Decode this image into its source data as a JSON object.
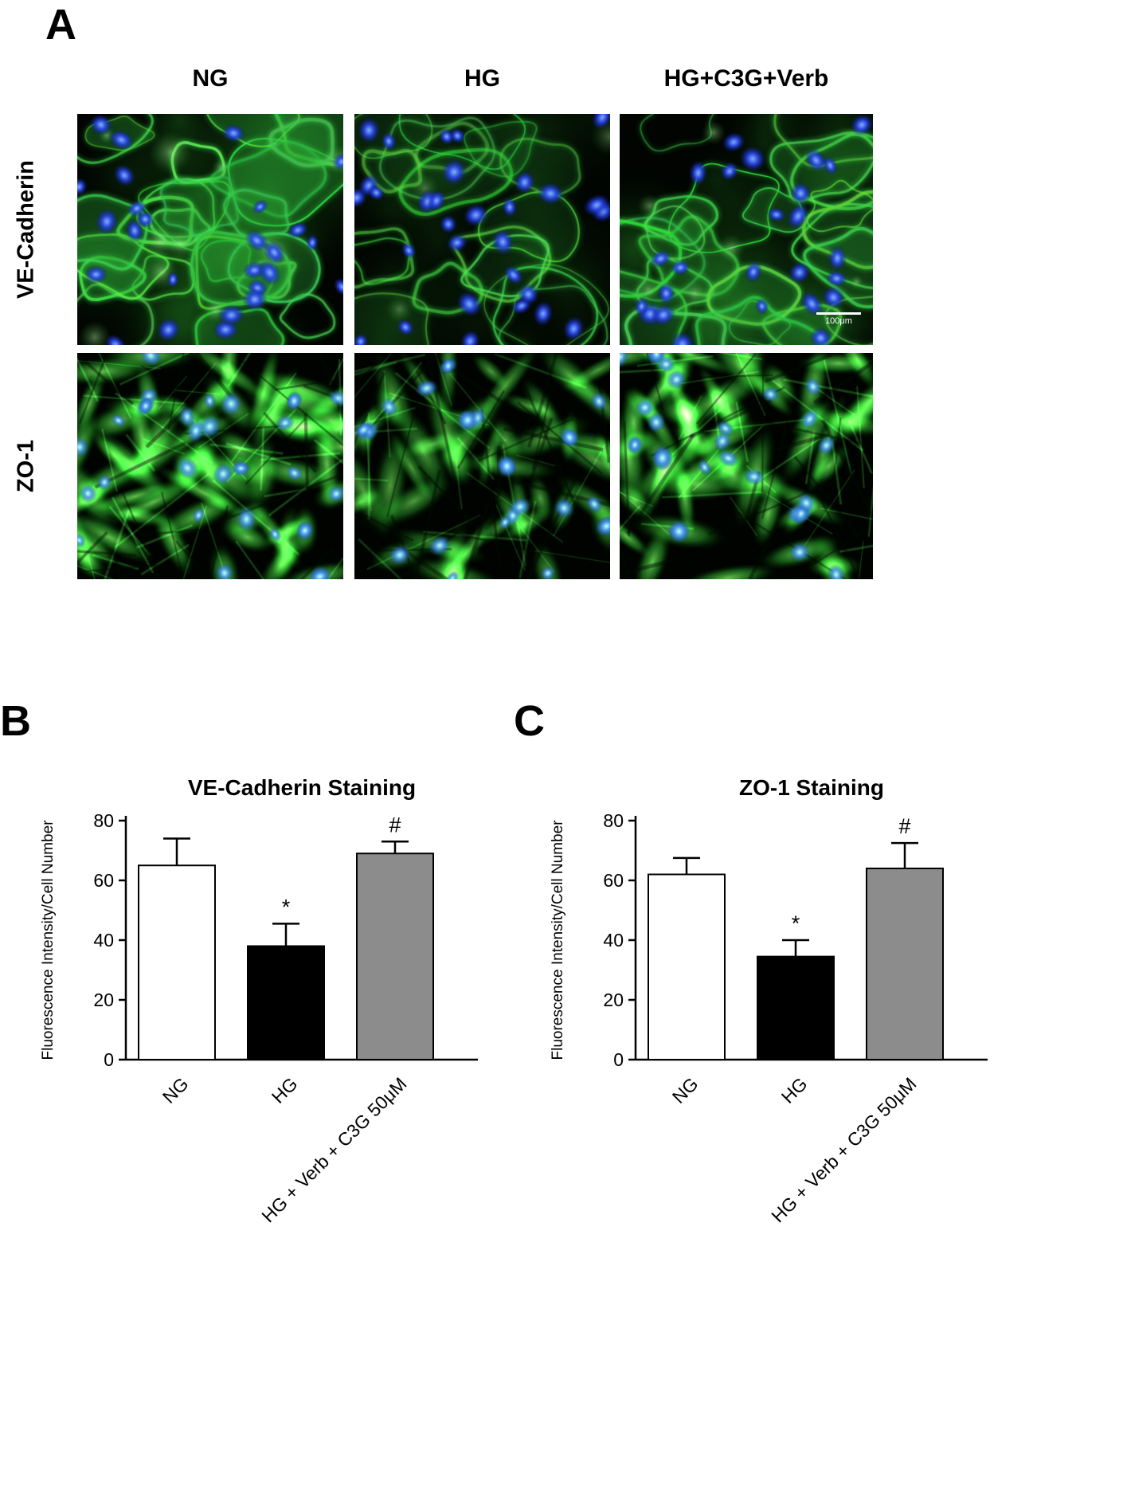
{
  "figure": {
    "panel_a": {
      "label": "A",
      "column_headers": [
        "NG",
        "HG",
        "HG+C3G+Verb"
      ],
      "row_labels": [
        "VE-Cadherin",
        "ZO-1"
      ],
      "scale_bar": "100μm"
    },
    "panel_b": {
      "label": "B"
    },
    "panel_c": {
      "label": "C"
    }
  },
  "chart_data": [
    {
      "type": "bar",
      "panel": "B",
      "title": "VE-Cadherin Staining",
      "xlabel": "",
      "ylabel": "Fluorescence Intensity/Cell Number",
      "ylim": [
        0,
        80
      ],
      "yticks": [
        0,
        20,
        40,
        60,
        80
      ],
      "categories": [
        "NG",
        "HG",
        "HG + Verb + C3G 50μM"
      ],
      "values": [
        65,
        38,
        69
      ],
      "errors": [
        9,
        7.5,
        4
      ],
      "annotations": [
        "",
        "*",
        "#"
      ],
      "bar_colors": [
        "#ffffff",
        "#000000",
        "#8c8c8c"
      ],
      "grid": false,
      "legend": "none"
    },
    {
      "type": "bar",
      "panel": "C",
      "title": "ZO-1 Staining",
      "xlabel": "",
      "ylabel": "Fluorescence Intensity/Cell Number",
      "ylim": [
        0,
        80
      ],
      "yticks": [
        0,
        20,
        40,
        60,
        80
      ],
      "categories": [
        "NG",
        "HG",
        "HG + Verb + C3G 50μM"
      ],
      "values": [
        62,
        34.5,
        64
      ],
      "errors": [
        5.5,
        5.5,
        8.5
      ],
      "annotations": [
        "",
        "*",
        "#"
      ],
      "bar_colors": [
        "#ffffff",
        "#000000",
        "#8c8c8c"
      ],
      "grid": false,
      "legend": "none"
    }
  ]
}
